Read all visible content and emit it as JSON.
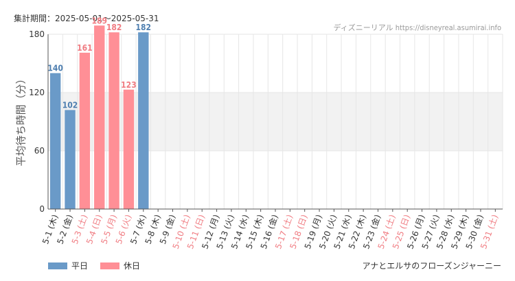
{
  "header": {
    "period": "集計期間：2025-05-01～2025-05-31",
    "source": "ディズニーリアル https://disneyreal.asumirai.info"
  },
  "legend": {
    "weekday_label": "平日",
    "holiday_label": "休日"
  },
  "footer": {
    "attraction": "アナとエルサのフローズンジャーニー"
  },
  "colors": {
    "weekday": "#6a9ac8",
    "holiday": "#ff8f96",
    "weekday_label": "#4f7fb0",
    "holiday_label": "#f07c82",
    "band": "#f2f2f2",
    "grid": "#e6e6e6"
  },
  "chart_data": {
    "type": "bar",
    "ylabel": "平均待ち時間（分）",
    "ylim": [
      0,
      180
    ],
    "yticks": [
      0,
      60,
      120,
      180
    ],
    "shaded_band": [
      60,
      120
    ],
    "categories": [
      {
        "label": "5-1 (木)",
        "holiday": false,
        "value": 140
      },
      {
        "label": "5-2 (金)",
        "holiday": false,
        "value": 102
      },
      {
        "label": "5-3 (土)",
        "holiday": true,
        "value": 161
      },
      {
        "label": "5-4 (日)",
        "holiday": true,
        "value": 189
      },
      {
        "label": "5-5 (月)",
        "holiday": true,
        "value": 182
      },
      {
        "label": "5-6 (火)",
        "holiday": true,
        "value": 123
      },
      {
        "label": "5-7 (水)",
        "holiday": false,
        "value": 182
      },
      {
        "label": "5-8 (木)",
        "holiday": false,
        "value": null
      },
      {
        "label": "5-9 (金)",
        "holiday": false,
        "value": null
      },
      {
        "label": "5-10 (土)",
        "holiday": true,
        "value": null
      },
      {
        "label": "5-11 (日)",
        "holiday": true,
        "value": null
      },
      {
        "label": "5-12 (月)",
        "holiday": false,
        "value": null
      },
      {
        "label": "5-13 (火)",
        "holiday": false,
        "value": null
      },
      {
        "label": "5-14 (水)",
        "holiday": false,
        "value": null
      },
      {
        "label": "5-15 (木)",
        "holiday": false,
        "value": null
      },
      {
        "label": "5-16 (金)",
        "holiday": false,
        "value": null
      },
      {
        "label": "5-17 (土)",
        "holiday": true,
        "value": null
      },
      {
        "label": "5-18 (日)",
        "holiday": true,
        "value": null
      },
      {
        "label": "5-19 (月)",
        "holiday": false,
        "value": null
      },
      {
        "label": "5-20 (火)",
        "holiday": false,
        "value": null
      },
      {
        "label": "5-21 (水)",
        "holiday": false,
        "value": null
      },
      {
        "label": "5-22 (木)",
        "holiday": false,
        "value": null
      },
      {
        "label": "5-23 (金)",
        "holiday": false,
        "value": null
      },
      {
        "label": "5-24 (土)",
        "holiday": true,
        "value": null
      },
      {
        "label": "5-25 (日)",
        "holiday": true,
        "value": null
      },
      {
        "label": "5-26 (月)",
        "holiday": false,
        "value": null
      },
      {
        "label": "5-27 (火)",
        "holiday": false,
        "value": null
      },
      {
        "label": "5-28 (水)",
        "holiday": false,
        "value": null
      },
      {
        "label": "5-29 (木)",
        "holiday": false,
        "value": null
      },
      {
        "label": "5-30 (金)",
        "holiday": false,
        "value": null
      },
      {
        "label": "5-31 (土)",
        "holiday": true,
        "value": null
      }
    ]
  }
}
